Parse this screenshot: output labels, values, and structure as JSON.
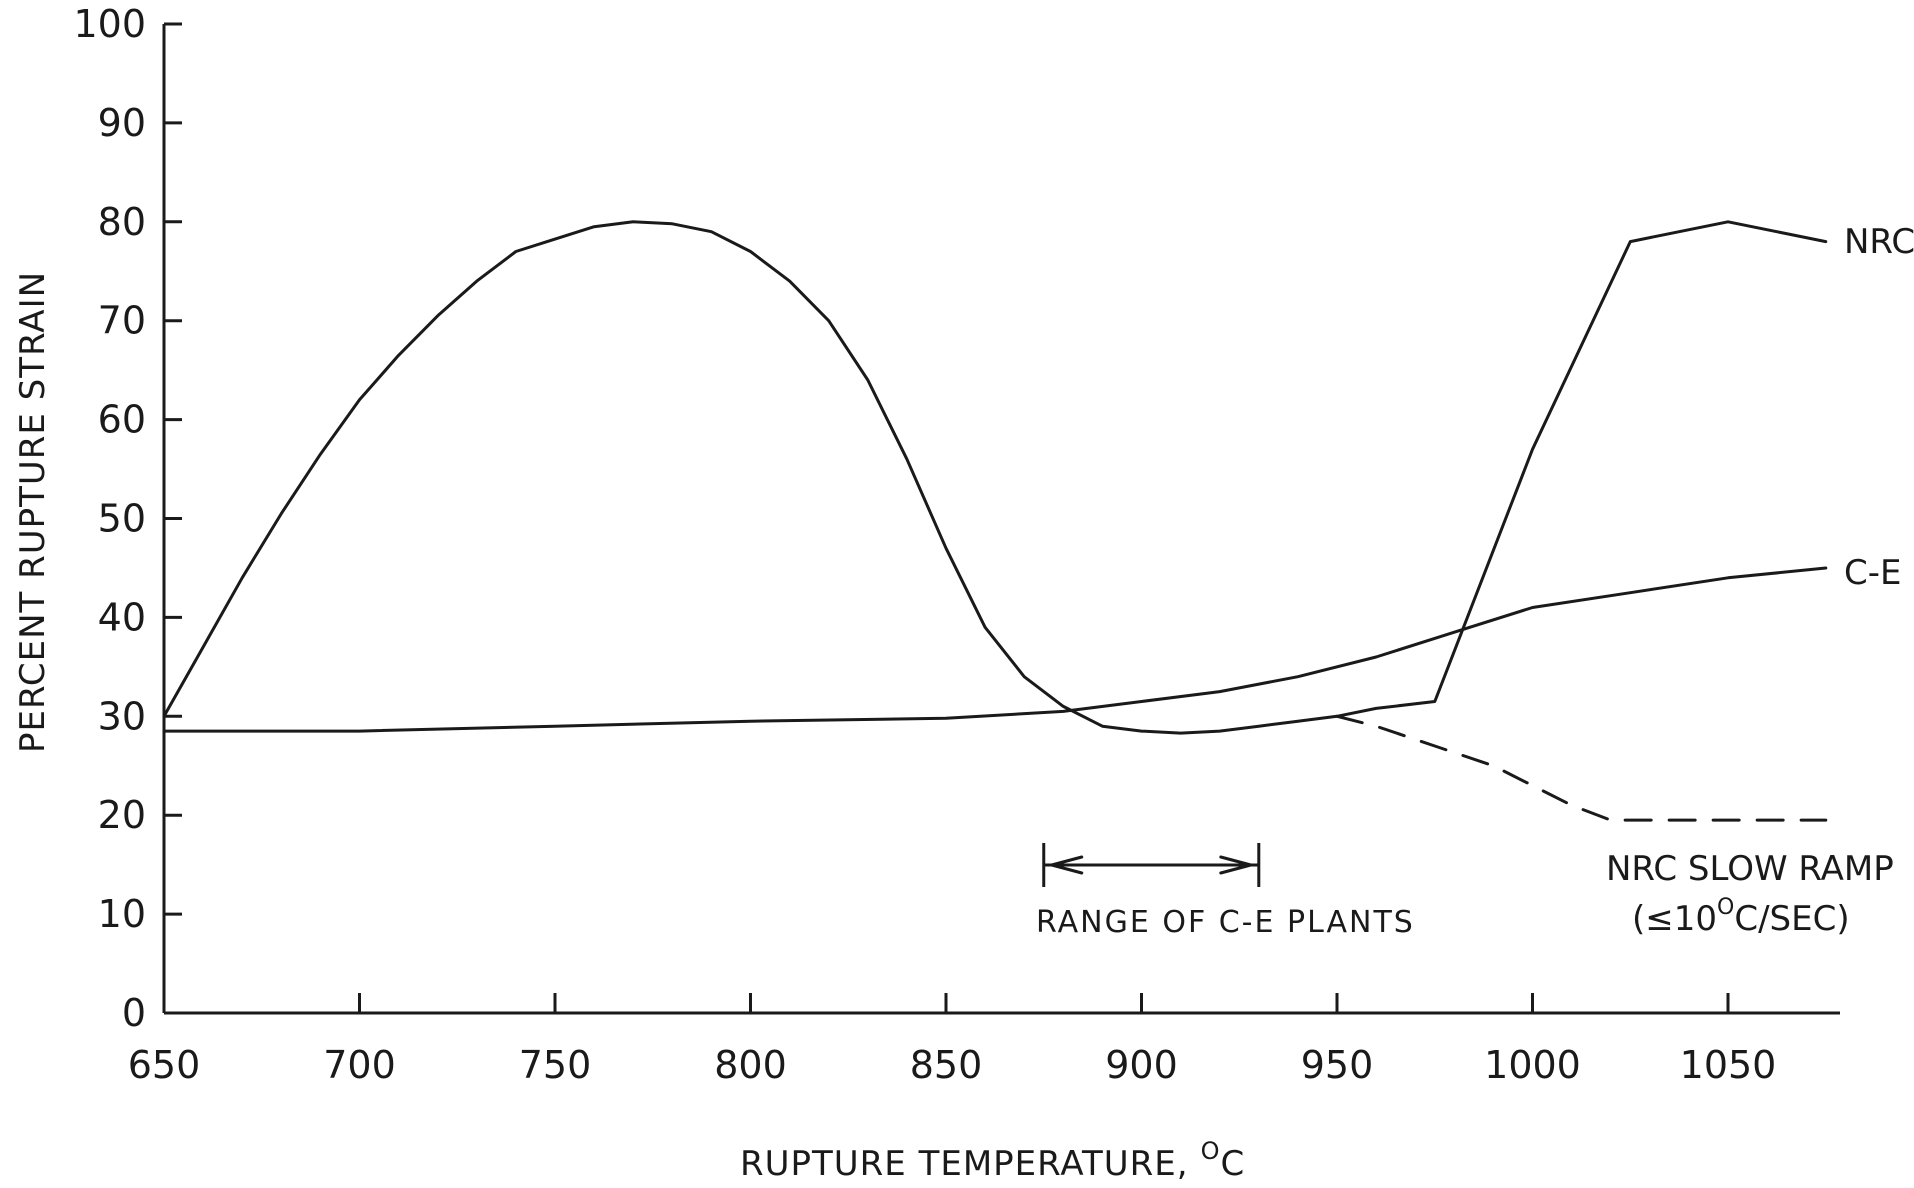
{
  "chart_data": {
    "type": "line",
    "xlabel": "RUPTURE TEMPERATURE,",
    "xlabel_unit": "C",
    "xlabel_unit_sup": "O",
    "ylabel": "PERCENT RUPTURE STRAIN",
    "xlim": [
      650,
      1075
    ],
    "ylim": [
      0,
      100
    ],
    "x_ticks": [
      650,
      700,
      750,
      800,
      850,
      900,
      950,
      1000,
      1050
    ],
    "y_ticks": [
      0,
      10,
      20,
      30,
      40,
      50,
      60,
      70,
      80,
      90,
      100
    ],
    "grid": false,
    "legend": "none (series labelled at right end of lines)",
    "series": [
      {
        "name": "NRC",
        "style": "solid",
        "x": [
          650,
          660,
          670,
          680,
          690,
          700,
          710,
          720,
          730,
          740,
          748,
          760,
          770,
          780,
          790,
          800,
          810,
          820,
          830,
          840,
          850,
          860,
          870,
          880,
          890,
          900,
          910,
          920,
          930,
          940,
          950,
          960,
          975,
          1000,
          1025,
          1050,
          1075
        ],
        "y": [
          30,
          37,
          44,
          50.5,
          56.5,
          62,
          66.5,
          70.5,
          74,
          77,
          78,
          79.5,
          80,
          79.8,
          79,
          77,
          74,
          70,
          64,
          56,
          47,
          39,
          34,
          31,
          29,
          28.5,
          28.3,
          28.5,
          29,
          29.5,
          30,
          30.8,
          31.5,
          57,
          78,
          80,
          78
        ]
      },
      {
        "name": "C-E",
        "style": "solid",
        "x": [
          650,
          700,
          750,
          800,
          850,
          880,
          900,
          920,
          940,
          960,
          980,
          1000,
          1025,
          1050,
          1075
        ],
        "y": [
          28.5,
          28.5,
          29,
          29.5,
          29.8,
          30.5,
          31.5,
          32.5,
          34,
          36,
          38.5,
          41,
          42.5,
          44,
          45
        ]
      },
      {
        "name": "NRC SLOW RAMP",
        "style": "dashed",
        "x": [
          950,
          960,
          975,
          990,
          1010,
          1020,
          1040,
          1060,
          1075
        ],
        "y": [
          30,
          29,
          27,
          25,
          21,
          19.5,
          19.5,
          19.5,
          19.5
        ]
      }
    ],
    "annotations": {
      "nrc_slow_ramp_line1": "NRC SLOW RAMP",
      "nrc_slow_ramp_line2_prefix": "(≤10",
      "nrc_slow_ramp_line2_sup": "O",
      "nrc_slow_ramp_line2_suffix": "C/SEC)",
      "range_label": "RANGE OF C-E PLANTS",
      "range_x": [
        875,
        930
      ]
    },
    "colors": {
      "ink": "#1a1a1a",
      "background": "#ffffff"
    }
  }
}
